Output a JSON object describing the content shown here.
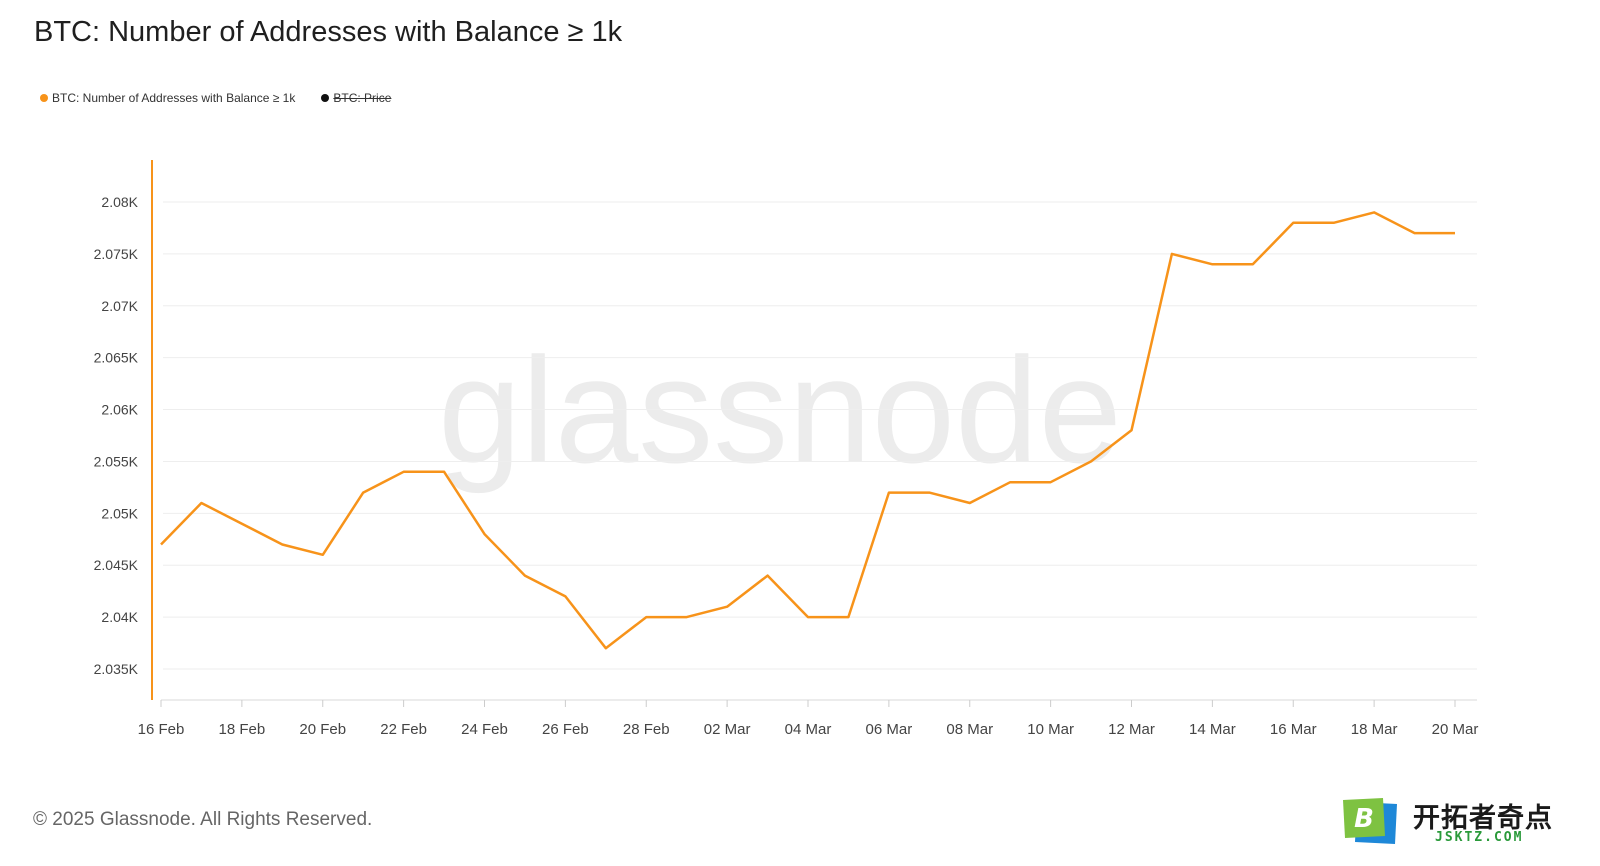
{
  "title": "BTC: Number of Addresses with Balance ≥ 1k",
  "legend": [
    {
      "label": "BTC: Number of Addresses with Balance ≥ 1k",
      "color": "#f7931a",
      "active": true
    },
    {
      "label": "BTC: Price",
      "color": "#111111",
      "active": false
    }
  ],
  "watermark": "glassnode",
  "footer": "© 2025 Glassnode. All Rights Reserved.",
  "badge": {
    "name": "开拓者奇点",
    "domain": "JSKTZ.COM",
    "letter": "B"
  },
  "chart_data": {
    "type": "line",
    "title": "BTC: Number of Addresses with Balance ≥ 1k",
    "xlabel": "",
    "ylabel": "",
    "ylim": [
      2033000,
      2082000
    ],
    "yticks": [
      2035000,
      2040000,
      2045000,
      2050000,
      2055000,
      2060000,
      2065000,
      2070000,
      2075000,
      2080000
    ],
    "ytick_labels": [
      "2.035K",
      "2.04K",
      "2.045K",
      "2.05K",
      "2.055K",
      "2.06K",
      "2.065K",
      "2.07K",
      "2.075K",
      "2.08K"
    ],
    "xtick_labels": [
      "16 Feb",
      "18 Feb",
      "20 Feb",
      "22 Feb",
      "24 Feb",
      "26 Feb",
      "28 Feb",
      "02 Mar",
      "04 Mar",
      "06 Mar",
      "08 Mar",
      "10 Mar",
      "12 Mar",
      "14 Mar",
      "16 Mar",
      "18 Mar",
      "20 Mar"
    ],
    "grid": true,
    "legend_position": "top-left",
    "x": [
      "16 Feb",
      "17 Feb",
      "18 Feb",
      "19 Feb",
      "20 Feb",
      "21 Feb",
      "22 Feb",
      "23 Feb",
      "24 Feb",
      "25 Feb",
      "26 Feb",
      "27 Feb",
      "28 Feb",
      "01 Mar",
      "02 Mar",
      "03 Mar",
      "04 Mar",
      "05 Mar",
      "06 Mar",
      "07 Mar",
      "08 Mar",
      "09 Mar",
      "10 Mar",
      "11 Mar",
      "12 Mar",
      "13 Mar",
      "14 Mar",
      "15 Mar",
      "16 Mar",
      "17 Mar",
      "18 Mar",
      "19 Mar",
      "20 Mar"
    ],
    "series": [
      {
        "name": "BTC: Number of Addresses with Balance ≥ 1k",
        "color": "#f7931a",
        "values": [
          2047000,
          2051000,
          2049000,
          2047000,
          2046000,
          2052000,
          2054000,
          2054000,
          2048000,
          2044000,
          2042000,
          2037000,
          2040000,
          2040000,
          2041000,
          2044000,
          2040000,
          2040000,
          2052000,
          2052000,
          2051000,
          2053000,
          2053000,
          2055000,
          2058000,
          2075000,
          2074000,
          2074000,
          2078000,
          2078000,
          2079000,
          2077000,
          2077000
        ]
      }
    ]
  }
}
